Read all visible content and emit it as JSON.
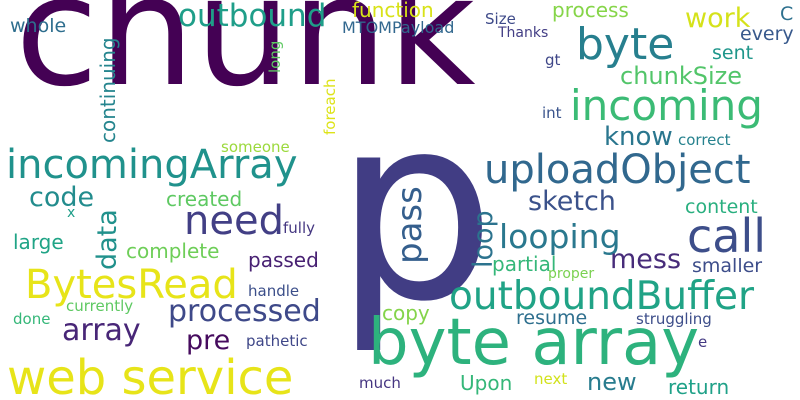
{
  "words": [
    {
      "text": "chunk",
      "color": "#440154"
    },
    {
      "text": "p",
      "color": "#413d84"
    },
    {
      "text": "byte array",
      "color": "#2db27d"
    },
    {
      "text": "web service",
      "color": "#e7e419"
    },
    {
      "text": "incoming",
      "color": "#3bbb75"
    },
    {
      "text": "incomingArray",
      "color": "#20928c"
    },
    {
      "text": "uploadObject",
      "color": "#31688e"
    },
    {
      "text": "byte",
      "color": "#277f8e"
    },
    {
      "text": "outboundBuffer",
      "color": "#20a386"
    },
    {
      "text": "BytesRead",
      "color": "#e7e419"
    },
    {
      "text": "call",
      "color": "#3d4e8a"
    },
    {
      "text": "need",
      "color": "#423f85"
    },
    {
      "text": "outbound",
      "color": "#1f9e89"
    },
    {
      "text": "looping",
      "color": "#2a788e"
    },
    {
      "text": "processed",
      "color": "#3e4989"
    },
    {
      "text": "array",
      "color": "#482677"
    },
    {
      "text": "sketch",
      "color": "#3b528b"
    },
    {
      "text": "pass",
      "color": "#355f8d"
    },
    {
      "text": "chunkSize",
      "color": "#52c569"
    },
    {
      "text": "work",
      "color": "#d5e21a"
    },
    {
      "text": "mess",
      "color": "#472c7a"
    },
    {
      "text": "loop",
      "color": "#2c738e"
    },
    {
      "text": "data",
      "color": "#21918c"
    },
    {
      "text": "code",
      "color": "#228c8d"
    },
    {
      "text": "know",
      "color": "#2a768e"
    },
    {
      "text": "pre",
      "color": "#460b5e"
    },
    {
      "text": "new",
      "color": "#287c8e"
    },
    {
      "text": "function",
      "color": "#d8e219"
    },
    {
      "text": "process",
      "color": "#86d549"
    },
    {
      "text": "continuing",
      "color": "#25858e"
    },
    {
      "text": "created",
      "color": "#5ec962"
    },
    {
      "text": "complete",
      "color": "#6ece58"
    },
    {
      "text": "copy",
      "color": "#84d44b"
    },
    {
      "text": "Upon",
      "color": "#35b779"
    },
    {
      "text": "return",
      "color": "#1fa188"
    },
    {
      "text": "large",
      "color": "#20a486"
    },
    {
      "text": "passed",
      "color": "#482173"
    },
    {
      "text": "partial",
      "color": "#35b779"
    },
    {
      "text": "content",
      "color": "#29af7f"
    },
    {
      "text": "smaller",
      "color": "#3d4d8a"
    },
    {
      "text": "resume",
      "color": "#2e6f8e"
    },
    {
      "text": "sent",
      "color": "#1f968b"
    },
    {
      "text": "every",
      "color": "#38598c"
    },
    {
      "text": "whole",
      "color": "#2e6e8e"
    },
    {
      "text": "C",
      "color": "#2d708e"
    },
    {
      "text": "MTOMPayload",
      "color": "#31678e"
    },
    {
      "text": "Size",
      "color": "#3e4a89"
    },
    {
      "text": "Thanks",
      "color": "#433e85"
    },
    {
      "text": "long",
      "color": "#5ec962"
    },
    {
      "text": "foreach",
      "color": "#dde318"
    },
    {
      "text": "gt",
      "color": "#3f4788"
    },
    {
      "text": "int",
      "color": "#3a548c"
    },
    {
      "text": "correct",
      "color": "#26828e"
    },
    {
      "text": "someone",
      "color": "#9bd93c"
    },
    {
      "text": "fully",
      "color": "#453781"
    },
    {
      "text": "handle",
      "color": "#3c4f8a"
    },
    {
      "text": "currently",
      "color": "#5ec962"
    },
    {
      "text": "done",
      "color": "#35b779"
    },
    {
      "text": "pathetic",
      "color": "#3f4788"
    },
    {
      "text": "much",
      "color": "#453581"
    },
    {
      "text": "next",
      "color": "#d2e21b"
    },
    {
      "text": "struggling",
      "color": "#3d4e8a"
    },
    {
      "text": "proper",
      "color": "#7ad151"
    },
    {
      "text": "x",
      "color": "#1f9e89"
    },
    {
      "text": "e",
      "color": "#443a83"
    }
  ]
}
